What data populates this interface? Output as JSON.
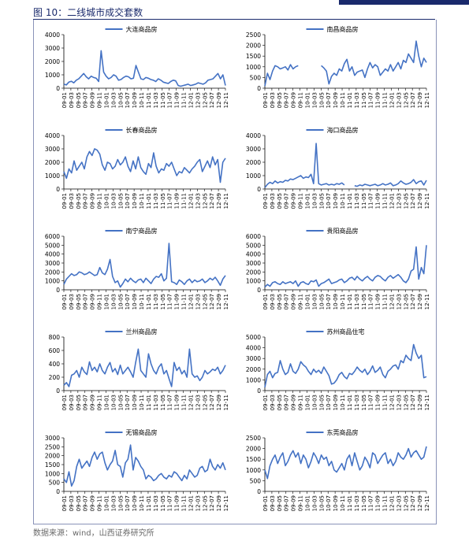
{
  "figure_title": "图 10：二线城市成交套数",
  "source_text": "数据来源：wind，山西证券研究所",
  "line_color": "#4472c4",
  "chart_data": [
    {
      "type": "line",
      "series": [
        {
          "name": "大连商品房",
          "values": [
            300,
            250,
            450,
            520,
            400,
            600,
            700,
            900,
            1100,
            850,
            700,
            900,
            800,
            750,
            500,
            2800,
            1200,
            900,
            700,
            800,
            1000,
            900,
            600,
            650,
            800,
            900,
            850,
            700,
            750,
            1700,
            1200,
            700,
            650,
            800,
            750,
            650,
            600,
            500,
            700,
            600,
            450,
            400,
            350,
            500,
            600,
            550,
            200,
            150,
            200,
            250,
            300,
            200,
            250,
            300,
            400,
            350,
            300,
            400,
            600,
            650,
            700,
            900,
            1100,
            700,
            1000,
            200
          ]
        }
      ],
      "ylim": [
        0,
        4000
      ],
      "yticks": [
        0,
        1000,
        2000,
        3000,
        4000
      ]
    },
    {
      "type": "line",
      "series": [
        {
          "name": "南昌商品房",
          "values": [
            100,
            700,
            400,
            800,
            1050,
            1000,
            900,
            950,
            1000,
            850,
            1100,
            900,
            1000,
            1050,
            null,
            null,
            null,
            null,
            null,
            null,
            null,
            null,
            1050,
            950,
            800,
            200,
            550,
            700,
            600,
            900,
            800,
            1150,
            1350,
            800,
            1000,
            600,
            750,
            800,
            850,
            500,
            900,
            1200,
            950,
            1100,
            1000,
            600,
            750,
            900,
            800,
            1100,
            800,
            1000,
            1200,
            900,
            1300,
            1200,
            1600,
            1400,
            1200,
            2200,
            1500,
            1000,
            1400,
            1200
          ]
        }
      ],
      "ylim": [
        0,
        2500
      ],
      "yticks": [
        0,
        500,
        1000,
        1500,
        2000,
        2500
      ]
    },
    {
      "type": "line",
      "series": [
        {
          "name": "长春商品房",
          "values": [
            1300,
            800,
            1500,
            1200,
            2100,
            1400,
            1700,
            2000,
            1500,
            2400,
            2800,
            2500,
            3000,
            2900,
            2600,
            1800,
            1400,
            2000,
            1900,
            1500,
            1700,
            2200,
            1800,
            2000,
            2400,
            1700,
            1300,
            2100,
            1500,
            2400,
            1600,
            1300,
            1100,
            1900,
            1600,
            2700,
            1700,
            1200,
            1500,
            1400,
            1900,
            1700,
            2000,
            1500,
            1000,
            1300,
            1200,
            1600,
            1400,
            1200,
            1500,
            1700,
            2000,
            2200,
            1300,
            1700,
            2100,
            1600,
            2400,
            1800,
            2200,
            500,
            2000,
            2300
          ]
        }
      ],
      "ylim": [
        0,
        4000
      ],
      "yticks": [
        0,
        1000,
        2000,
        3000,
        4000
      ]
    },
    {
      "type": "line",
      "series": [
        {
          "name": "海口商品房",
          "values": [
            100,
            350,
            500,
            400,
            600,
            450,
            550,
            500,
            650,
            600,
            750,
            700,
            800,
            900,
            1000,
            800,
            900,
            850,
            1100,
            400,
            3400,
            400,
            300,
            350,
            400,
            300,
            350,
            300,
            400,
            350,
            450,
            300,
            null,
            null,
            null,
            250,
            200,
            300,
            250,
            350,
            300,
            250,
            300,
            350,
            250,
            300,
            400,
            300,
            350,
            450,
            250,
            300,
            400,
            600,
            450,
            350,
            400,
            500,
            700,
            400,
            550,
            600,
            300,
            650
          ]
        }
      ],
      "ylim": [
        0,
        4000
      ],
      "yticks": [
        0,
        1000,
        2000,
        3000,
        4000
      ]
    },
    {
      "type": "line",
      "series": [
        {
          "name": "南宁商品房",
          "values": [
            600,
            1200,
            1500,
            1800,
            1600,
            1700,
            2000,
            1900,
            1700,
            1800,
            2000,
            1800,
            1600,
            1700,
            2500,
            1900,
            1700,
            2300,
            3400,
            1500,
            800,
            1000,
            300,
            700,
            1200,
            900,
            1300,
            1000,
            800,
            1100,
            1200,
            800,
            1300,
            1000,
            700,
            1200,
            1500,
            1400,
            1800,
            1000,
            1300,
            5200,
            900,
            800,
            600,
            1100,
            900,
            600,
            1000,
            1200,
            800,
            1100,
            900,
            1000,
            1200,
            800,
            1000,
            1300,
            1100,
            1400,
            1000,
            500,
            1200,
            1600
          ]
        }
      ],
      "ylim": [
        0,
        6000
      ],
      "yticks": [
        0,
        1000,
        2000,
        3000,
        4000,
        5000,
        6000
      ]
    },
    {
      "type": "line",
      "series": [
        {
          "name": "贵阳商品房",
          "values": [
            300,
            600,
            400,
            800,
            900,
            700,
            600,
            900,
            700,
            800,
            900,
            700,
            1000,
            400,
            800,
            900,
            700,
            600,
            1000,
            900,
            1100,
            400,
            700,
            800,
            1000,
            1200,
            700,
            800,
            900,
            1100,
            1200,
            800,
            1000,
            1300,
            1400,
            1100,
            1500,
            1200,
            1000,
            1300,
            1500,
            1200,
            1000,
            1400,
            1600,
            1500,
            1200,
            1000,
            1400,
            1600,
            1300,
            1500,
            1700,
            1400,
            1000,
            800,
            1200,
            2100,
            2300,
            4800,
            1200,
            2500,
            1800,
            5000
          ]
        }
      ],
      "ylim": [
        0,
        6000
      ],
      "yticks": [
        0,
        1000,
        2000,
        3000,
        4000,
        5000,
        6000
      ]
    },
    {
      "type": "line",
      "series": [
        {
          "name": "兰州商品房",
          "values": [
            80,
            120,
            60,
            230,
            250,
            300,
            200,
            350,
            280,
            240,
            430,
            300,
            350,
            280,
            400,
            300,
            250,
            350,
            420,
            280,
            330,
            240,
            380,
            250,
            300,
            350,
            280,
            200,
            420,
            620,
            300,
            250,
            200,
            550,
            400,
            300,
            250,
            350,
            400,
            250,
            300,
            180,
            60,
            420,
            300,
            350,
            250,
            300,
            200,
            620,
            250,
            200,
            220,
            150,
            200,
            300,
            250,
            280,
            320,
            300,
            350,
            250,
            300,
            380
          ]
        }
      ],
      "ylim": [
        0,
        800
      ],
      "yticks": [
        0,
        200,
        400,
        600,
        800
      ]
    },
    {
      "type": "line",
      "series": [
        {
          "name": "苏州商品住宅",
          "values": [
            300,
            1500,
            1800,
            1200,
            1600,
            1700,
            2800,
            2000,
            1500,
            1700,
            2500,
            1800,
            1600,
            2000,
            2700,
            2400,
            2200,
            1800,
            1500,
            2000,
            1700,
            1900,
            1600,
            2200,
            1800,
            1400,
            600,
            700,
            1000,
            1500,
            1700,
            1300,
            1100,
            1600,
            1500,
            1800,
            2200,
            1900,
            1700,
            2000,
            1500,
            1800,
            2300,
            1700,
            1900,
            2200,
            1500,
            1200,
            1800,
            2000,
            2300,
            2400,
            2000,
            2800,
            2600,
            3300,
            3000,
            2800,
            4300,
            3500,
            3000,
            3300,
            1200,
            1300
          ]
        }
      ],
      "ylim": [
        0,
        5000
      ],
      "yticks": [
        0,
        1000,
        2000,
        3000,
        4000,
        5000
      ]
    },
    {
      "type": "line",
      "series": [
        {
          "name": "无锡商品房",
          "values": [
            700,
            500,
            1100,
            300,
            600,
            1400,
            1800,
            1300,
            1500,
            1700,
            1400,
            1900,
            2200,
            1800,
            2100,
            2200,
            1600,
            1200,
            1500,
            1700,
            2300,
            1500,
            1400,
            800,
            1600,
            1800,
            2600,
            1200,
            1900,
            1700,
            1400,
            1200,
            700,
            900,
            800,
            600,
            700,
            900,
            1000,
            800,
            700,
            900,
            800,
            1100,
            1000,
            800,
            600,
            900,
            700,
            1200,
            1000,
            800,
            900,
            1300,
            1400,
            1100,
            1200,
            1800,
            1400,
            1200,
            1500,
            1300,
            1600,
            1200
          ]
        }
      ],
      "ylim": [
        0,
        3000
      ],
      "yticks": [
        0,
        500,
        1000,
        1500,
        2000,
        2500,
        3000
      ]
    },
    {
      "type": "line",
      "series": [
        {
          "name": "东莞商品房",
          "values": [
            1000,
            600,
            1200,
            1500,
            1700,
            1300,
            1600,
            1800,
            1200,
            1400,
            1700,
            1900,
            1600,
            1800,
            1300,
            1700,
            1500,
            1100,
            1400,
            1800,
            1600,
            1300,
            1700,
            1500,
            1600,
            1200,
            1400,
            1000,
            900,
            1100,
            1300,
            1000,
            1500,
            1700,
            1200,
            1800,
            1400,
            1000,
            1200,
            1600,
            1400,
            1100,
            1800,
            1700,
            1300,
            1500,
            1700,
            1800,
            1300,
            1500,
            1200,
            1400,
            1800,
            1600,
            1500,
            1700,
            2000,
            1600,
            1800,
            1900,
            1700,
            1500,
            1600,
            2100
          ]
        }
      ],
      "ylim": [
        0,
        2500
      ],
      "yticks": [
        0,
        500,
        1000,
        1500,
        2000,
        2500
      ]
    }
  ],
  "xticks": [
    "09-01",
    "09-03",
    "09-05",
    "09-07",
    "09-09",
    "09-11",
    "10-01",
    "10-03",
    "10-05",
    "10-07",
    "10-09",
    "10-11",
    "11-01",
    "11-03",
    "11-05",
    "11-07",
    "11-09",
    "11-11",
    "12-01",
    "12-03",
    "12-05",
    "12-07",
    "12-09",
    "12-11"
  ]
}
